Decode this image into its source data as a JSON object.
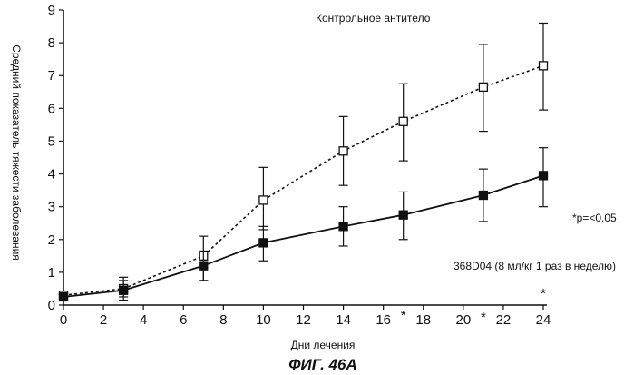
{
  "chart_data": {
    "type": "line",
    "xlabel": "Дни лечения",
    "ylabel": "Средний показатель тяжести заболевания",
    "xlim": [
      0,
      24
    ],
    "ylim": [
      0,
      9
    ],
    "x_ticks": [
      0,
      2,
      4,
      6,
      8,
      10,
      12,
      14,
      16,
      18,
      20,
      22,
      24
    ],
    "y_ticks": [
      0,
      1,
      2,
      3,
      4,
      5,
      6,
      7,
      8,
      9
    ],
    "grid": false,
    "series": [
      {
        "name": "Контрольное  антитело",
        "marker": "open-square",
        "line_style": "dotted",
        "x": [
          0,
          3,
          7,
          10,
          14,
          17,
          21,
          24
        ],
        "y": [
          0.3,
          0.5,
          1.5,
          3.2,
          4.7,
          5.6,
          6.65,
          7.3
        ],
        "err_low": [
          0.15,
          0.25,
          0.75,
          2.3,
          3.65,
          4.4,
          5.3,
          5.95
        ],
        "err_high": [
          0.35,
          0.85,
          2.1,
          4.2,
          5.75,
          6.75,
          7.95,
          8.6
        ]
      },
      {
        "name": "368D04 (8 мл/кг 1 раз в неделю)",
        "marker": "filled-square",
        "line_style": "solid",
        "x": [
          0,
          3,
          7,
          10,
          14,
          17,
          21,
          24
        ],
        "y": [
          0.25,
          0.45,
          1.2,
          1.9,
          2.4,
          2.75,
          3.35,
          3.95
        ],
        "err_low": [
          0.2,
          0.15,
          0.75,
          1.35,
          1.8,
          2.0,
          2.55,
          3.0
        ],
        "err_high": [
          0.35,
          0.75,
          1.65,
          2.4,
          3.0,
          3.45,
          4.15,
          4.8
        ]
      }
    ],
    "significance": {
      "marker": "*",
      "x": [
        17,
        21,
        24
      ],
      "note": "*p=<0.05"
    },
    "series_labels": {
      "control": "Контрольное  антитело",
      "treated": "368D04 (8 мл/кг 1 раз в неделю)"
    },
    "figure_caption": "ФИГ. 46А"
  }
}
